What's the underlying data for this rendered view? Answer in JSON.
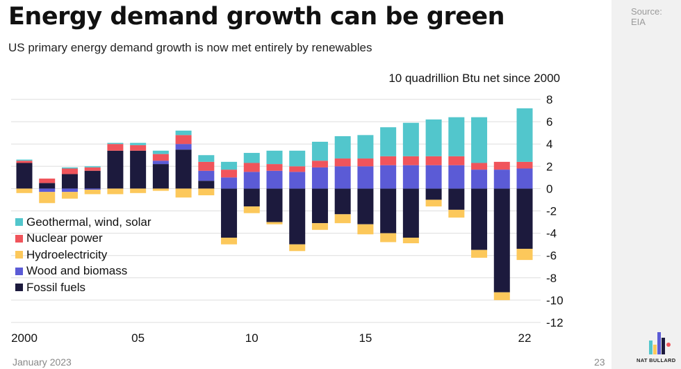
{
  "header": {
    "title": "Energy demand growth can be green",
    "subtitle": "US primary energy demand growth is now met entirely by renewables"
  },
  "source": {
    "label": "Source:",
    "value": "EIA"
  },
  "footer": {
    "date": "January 2023",
    "page": "23",
    "brand": "NAT BULLARD"
  },
  "chart_data": {
    "type": "bar",
    "stacked": true,
    "title": "Energy demand growth can be green",
    "ylabel": "10 quadrillion Btu net since 2000",
    "ylim": [
      -12,
      8
    ],
    "yticks": [
      8,
      6,
      4,
      2,
      0,
      -2,
      -4,
      -6,
      -8,
      -10,
      -12
    ],
    "grid": true,
    "legend_position": "left",
    "categories": [
      "2000",
      "2001",
      "2002",
      "2003",
      "2004",
      "2005",
      "2006",
      "2007",
      "2008",
      "2009",
      "2010",
      "2011",
      "2012",
      "2013",
      "2014",
      "2015",
      "2016",
      "2017",
      "2018",
      "2019",
      "2020",
      "2021",
      "2022"
    ],
    "xtick_labels": [
      {
        "category": "2000",
        "label": "2000"
      },
      {
        "category": "2005",
        "label": "05"
      },
      {
        "category": "2010",
        "label": "10"
      },
      {
        "category": "2015",
        "label": "15"
      },
      {
        "category": "2022",
        "label": "22"
      }
    ],
    "series": [
      {
        "name": "Geothermal, wind, solar",
        "color": "#52c6cc",
        "values": [
          0.1,
          0.0,
          0.1,
          0.1,
          0.1,
          0.2,
          0.3,
          0.4,
          0.6,
          0.7,
          0.9,
          1.2,
          1.4,
          1.7,
          2.0,
          2.1,
          2.6,
          3.0,
          3.3,
          3.5,
          4.1,
          0.0,
          4.8
        ]
      },
      {
        "name": "Nuclear power",
        "color": "#f0545b",
        "values": [
          0.2,
          0.4,
          0.5,
          0.3,
          0.6,
          0.5,
          0.6,
          0.8,
          0.8,
          0.7,
          0.8,
          0.6,
          0.5,
          0.6,
          0.7,
          0.7,
          0.8,
          0.8,
          0.8,
          0.8,
          0.6,
          0.7,
          0.6
        ]
      },
      {
        "name": "Hydroelectricity",
        "color": "#fcc85b",
        "values": [
          -0.4,
          -1.0,
          -0.6,
          -0.4,
          -0.5,
          -0.4,
          -0.2,
          -0.8,
          -0.6,
          -0.6,
          -0.6,
          -0.2,
          -0.6,
          -0.6,
          -0.8,
          -0.9,
          -0.8,
          -0.5,
          -0.6,
          -0.7,
          -0.7,
          -0.7,
          -1.0
        ]
      },
      {
        "name": "Wood and biomass",
        "color": "#5b5bd6",
        "values": [
          0.0,
          -0.3,
          -0.3,
          -0.1,
          0.0,
          0.0,
          0.3,
          0.5,
          0.9,
          1.0,
          1.5,
          1.6,
          1.5,
          1.9,
          2.0,
          2.0,
          2.1,
          2.1,
          2.1,
          2.1,
          1.7,
          1.7,
          1.8
        ]
      },
      {
        "name": "Fossil fuels",
        "color": "#1c1a3d",
        "values": [
          2.3,
          0.5,
          1.3,
          1.6,
          3.4,
          3.4,
          2.2,
          3.5,
          0.7,
          -4.4,
          -1.6,
          -3.0,
          -5.0,
          -3.1,
          -2.3,
          -3.2,
          -4.0,
          -4.4,
          -1.0,
          -1.9,
          -5.5,
          -9.3,
          -5.4
        ]
      }
    ]
  }
}
